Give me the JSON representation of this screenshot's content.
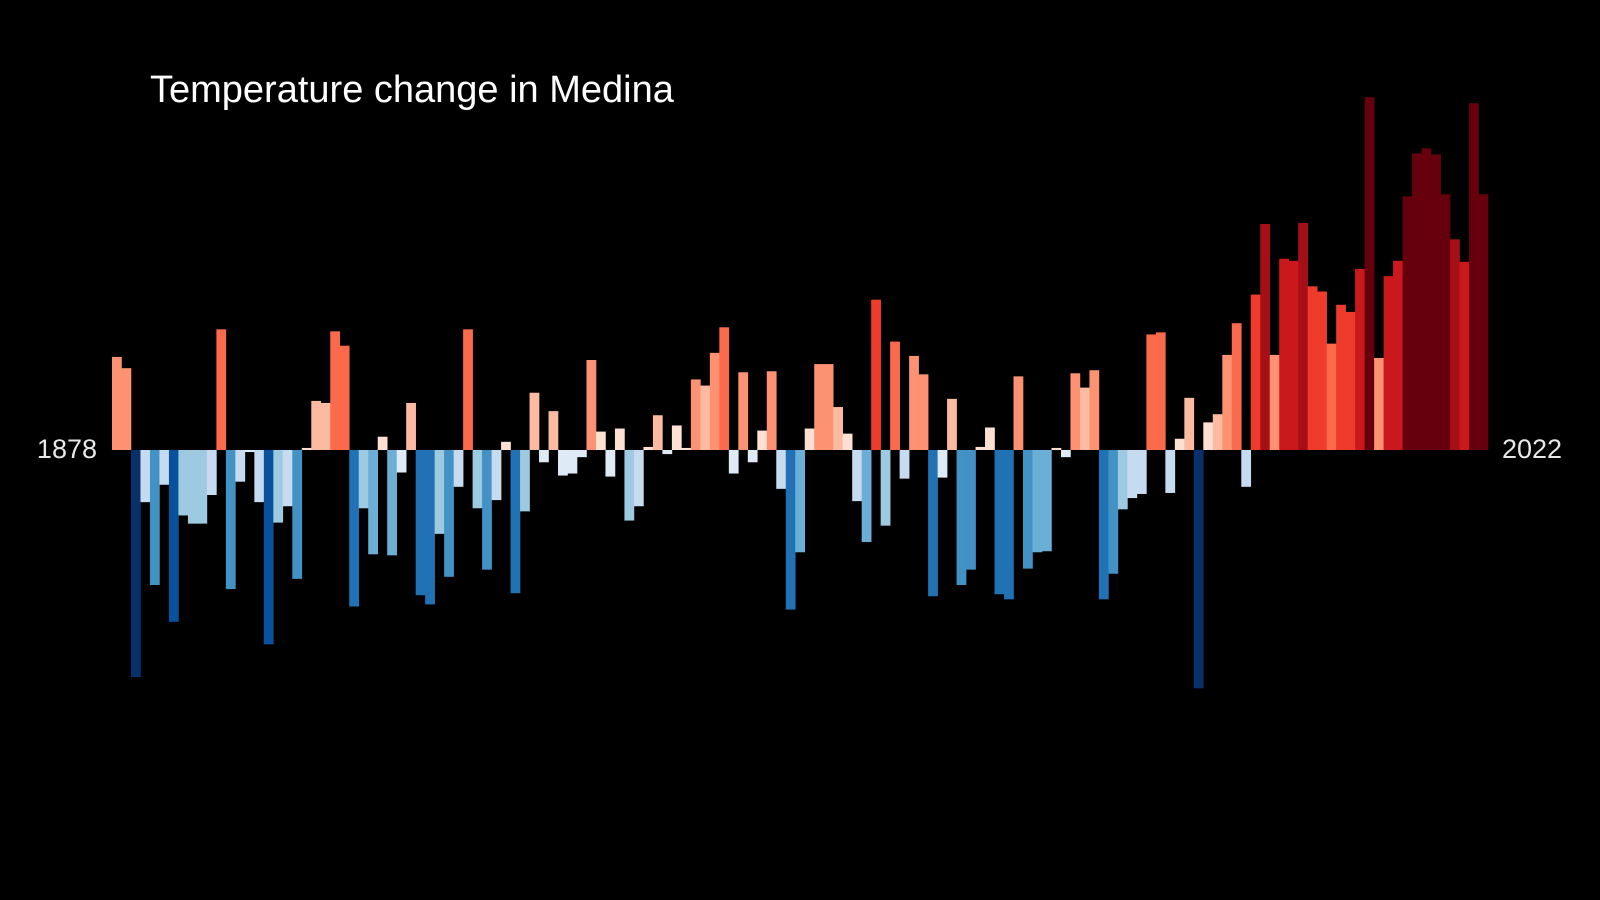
{
  "chart_data": {
    "type": "bar",
    "title": "Temperature change in Medina",
    "xlim": [
      1878,
      2022
    ],
    "x": [
      1878,
      1879,
      1880,
      1881,
      1882,
      1883,
      1884,
      1885,
      1886,
      1887,
      1888,
      1889,
      1890,
      1891,
      1892,
      1893,
      1894,
      1895,
      1896,
      1897,
      1898,
      1899,
      1900,
      1901,
      1902,
      1903,
      1904,
      1905,
      1906,
      1907,
      1908,
      1909,
      1910,
      1911,
      1912,
      1913,
      1914,
      1915,
      1916,
      1917,
      1918,
      1919,
      1920,
      1921,
      1922,
      1923,
      1924,
      1925,
      1926,
      1927,
      1928,
      1929,
      1930,
      1931,
      1932,
      1933,
      1934,
      1935,
      1936,
      1937,
      1938,
      1939,
      1940,
      1941,
      1942,
      1943,
      1944,
      1945,
      1946,
      1947,
      1948,
      1949,
      1950,
      1951,
      1952,
      1953,
      1954,
      1955,
      1956,
      1957,
      1958,
      1959,
      1960,
      1961,
      1962,
      1963,
      1964,
      1965,
      1966,
      1967,
      1968,
      1969,
      1970,
      1971,
      1972,
      1973,
      1974,
      1975,
      1976,
      1977,
      1978,
      1979,
      1980,
      1981,
      1982,
      1983,
      1984,
      1985,
      1986,
      1987,
      1988,
      1989,
      1990,
      1991,
      1992,
      1993,
      1994,
      1995,
      1996,
      1997,
      1998,
      1999,
      2000,
      2001,
      2002,
      2003,
      2004,
      2005,
      2006,
      2007,
      2008,
      2009,
      2010,
      2011,
      2012,
      2013,
      2014,
      2015,
      2016,
      2017,
      2018,
      2019,
      2020,
      2021,
      2022
    ],
    "values": [
      0.91,
      0.8,
      -2.22,
      -0.51,
      -1.32,
      -0.34,
      -1.68,
      -0.64,
      -0.72,
      -0.72,
      -0.44,
      1.18,
      -1.36,
      -0.31,
      -0.02,
      -0.51,
      -1.9,
      -0.71,
      -0.55,
      -1.26,
      0.02,
      0.48,
      0.46,
      1.16,
      1.02,
      -1.53,
      -0.57,
      -1.02,
      0.13,
      -1.03,
      -0.22,
      0.46,
      -1.42,
      -1.51,
      -0.82,
      -1.24,
      -0.36,
      1.18,
      -0.57,
      -1.17,
      -0.49,
      0.08,
      -1.4,
      -0.6,
      0.56,
      -0.12,
      0.38,
      -0.25,
      -0.23,
      -0.07,
      0.88,
      0.18,
      -0.26,
      0.21,
      -0.69,
      -0.55,
      0.03,
      0.34,
      -0.04,
      0.24,
      0.02,
      0.69,
      0.63,
      0.95,
      1.2,
      -0.23,
      0.76,
      -0.12,
      0.19,
      0.77,
      -0.38,
      -1.56,
      -1.0,
      0.21,
      0.84,
      0.84,
      0.42,
      0.16,
      -0.5,
      -0.9,
      1.47,
      -0.74,
      1.06,
      -0.28,
      0.92,
      0.74,
      -1.43,
      -0.27,
      0.5,
      -1.32,
      -1.17,
      0.03,
      0.22,
      -1.41,
      -1.46,
      0.72,
      -1.16,
      -1.0,
      -0.99,
      0.02,
      -0.07,
      0.75,
      0.61,
      0.78,
      -1.46,
      -1.21,
      -0.58,
      -0.47,
      -0.43,
      1.13,
      1.15,
      -0.42,
      0.11,
      0.51,
      -2.33,
      0.27,
      0.35,
      0.93,
      1.24,
      -0.36,
      1.52,
      2.21,
      0.93,
      1.87,
      1.85,
      2.22,
      1.6,
      1.55,
      1.04,
      1.42,
      1.35,
      1.77,
      3.45,
      0.9,
      1.7,
      1.85,
      2.48,
      2.9,
      2.95,
      2.89,
      2.5,
      2.06,
      1.84,
      3.39,
      2.5
    ],
    "ylim": [
      -4.4,
      4.4
    ],
    "colormap": [
      "#08306b",
      "#08519c",
      "#2171b5",
      "#4292c6",
      "#6baed6",
      "#9ecae1",
      "#c6dbef",
      "#deebf7",
      "#fee0d2",
      "#fcbba1",
      "#fc9272",
      "#fb6a4a",
      "#ef3b2c",
      "#cb181d",
      "#a50f15",
      "#67000d"
    ],
    "color_range": [
      -2.2,
      2.6
    ]
  }
}
